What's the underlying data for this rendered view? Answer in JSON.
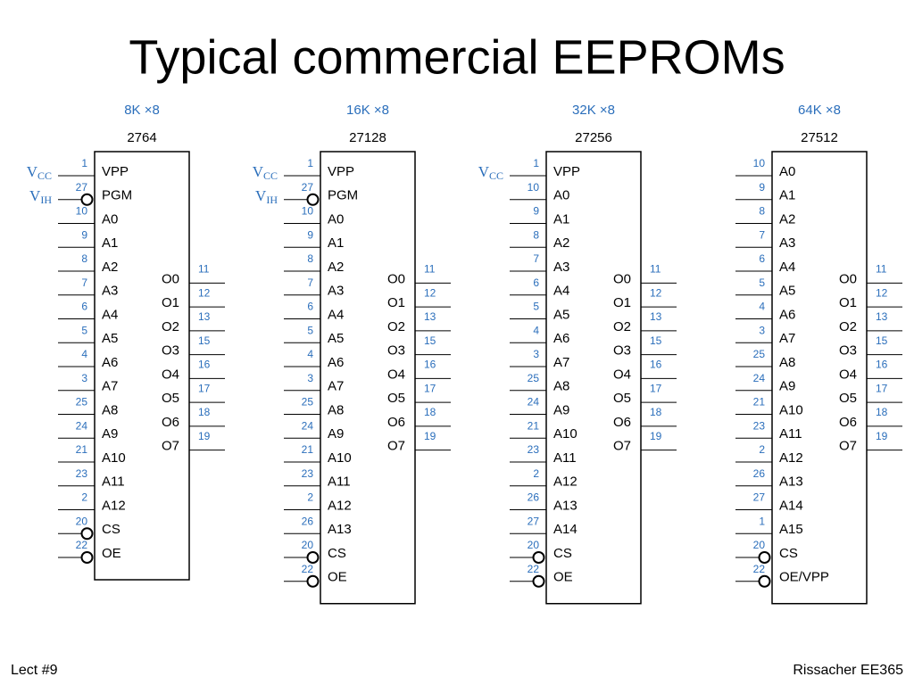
{
  "title": "Typical commercial EEPROMs",
  "footer": {
    "left": "Lect #9",
    "right": "Rissacher EE365"
  },
  "chips": [
    {
      "size": "8K ×8",
      "part": "2764",
      "left_pins": [
        {
          "num": 1,
          "name": "VPP",
          "signal": {
            "main": "V",
            "sub": "CC"
          }
        },
        {
          "num": 27,
          "name": "PGM",
          "active_low": true,
          "signal": {
            "main": "V",
            "sub": "IH"
          }
        },
        {
          "num": 10,
          "name": "A0"
        },
        {
          "num": 9,
          "name": "A1"
        },
        {
          "num": 8,
          "name": "A2"
        },
        {
          "num": 7,
          "name": "A3"
        },
        {
          "num": 6,
          "name": "A4"
        },
        {
          "num": 5,
          "name": "A5"
        },
        {
          "num": 4,
          "name": "A6"
        },
        {
          "num": 3,
          "name": "A7"
        },
        {
          "num": 25,
          "name": "A8"
        },
        {
          "num": 24,
          "name": "A9"
        },
        {
          "num": 21,
          "name": "A10"
        },
        {
          "num": 23,
          "name": "A11"
        },
        {
          "num": 2,
          "name": "A12"
        },
        {
          "num": 20,
          "name": "CS",
          "active_low": true
        },
        {
          "num": 22,
          "name": "OE",
          "active_low": true
        }
      ],
      "right_pins": [
        {
          "num": 11,
          "name": "O0"
        },
        {
          "num": 12,
          "name": "O1"
        },
        {
          "num": 13,
          "name": "O2"
        },
        {
          "num": 15,
          "name": "O3"
        },
        {
          "num": 16,
          "name": "O4"
        },
        {
          "num": 17,
          "name": "O5"
        },
        {
          "num": 18,
          "name": "O6"
        },
        {
          "num": 19,
          "name": "O7"
        }
      ]
    },
    {
      "size": "16K ×8",
      "part": "27128",
      "left_pins": [
        {
          "num": 1,
          "name": "VPP",
          "signal": {
            "main": "V",
            "sub": "CC"
          }
        },
        {
          "num": 27,
          "name": "PGM",
          "active_low": true,
          "signal": {
            "main": "V",
            "sub": "IH"
          }
        },
        {
          "num": 10,
          "name": "A0"
        },
        {
          "num": 9,
          "name": "A1"
        },
        {
          "num": 8,
          "name": "A2"
        },
        {
          "num": 7,
          "name": "A3"
        },
        {
          "num": 6,
          "name": "A4"
        },
        {
          "num": 5,
          "name": "A5"
        },
        {
          "num": 4,
          "name": "A6"
        },
        {
          "num": 3,
          "name": "A7"
        },
        {
          "num": 25,
          "name": "A8"
        },
        {
          "num": 24,
          "name": "A9"
        },
        {
          "num": 21,
          "name": "A10"
        },
        {
          "num": 23,
          "name": "A11"
        },
        {
          "num": 2,
          "name": "A12"
        },
        {
          "num": 26,
          "name": "A13"
        },
        {
          "num": 20,
          "name": "CS",
          "active_low": true
        },
        {
          "num": 22,
          "name": "OE",
          "active_low": true
        }
      ],
      "right_pins": [
        {
          "num": 11,
          "name": "O0"
        },
        {
          "num": 12,
          "name": "O1"
        },
        {
          "num": 13,
          "name": "O2"
        },
        {
          "num": 15,
          "name": "O3"
        },
        {
          "num": 16,
          "name": "O4"
        },
        {
          "num": 17,
          "name": "O5"
        },
        {
          "num": 18,
          "name": "O6"
        },
        {
          "num": 19,
          "name": "O7"
        }
      ]
    },
    {
      "size": "32K ×8",
      "part": "27256",
      "left_pins": [
        {
          "num": 1,
          "name": "VPP",
          "signal": {
            "main": "V",
            "sub": "CC"
          }
        },
        {
          "num": 10,
          "name": "A0"
        },
        {
          "num": 9,
          "name": "A1"
        },
        {
          "num": 8,
          "name": "A2"
        },
        {
          "num": 7,
          "name": "A3"
        },
        {
          "num": 6,
          "name": "A4"
        },
        {
          "num": 5,
          "name": "A5"
        },
        {
          "num": 4,
          "name": "A6"
        },
        {
          "num": 3,
          "name": "A7"
        },
        {
          "num": 25,
          "name": "A8"
        },
        {
          "num": 24,
          "name": "A9"
        },
        {
          "num": 21,
          "name": "A10"
        },
        {
          "num": 23,
          "name": "A11"
        },
        {
          "num": 2,
          "name": "A12"
        },
        {
          "num": 26,
          "name": "A13"
        },
        {
          "num": 27,
          "name": "A14"
        },
        {
          "num": 20,
          "name": "CS",
          "active_low": true
        },
        {
          "num": 22,
          "name": "OE",
          "active_low": true
        }
      ],
      "right_pins": [
        {
          "num": 11,
          "name": "O0"
        },
        {
          "num": 12,
          "name": "O1"
        },
        {
          "num": 13,
          "name": "O2"
        },
        {
          "num": 15,
          "name": "O3"
        },
        {
          "num": 16,
          "name": "O4"
        },
        {
          "num": 17,
          "name": "O5"
        },
        {
          "num": 18,
          "name": "O6"
        },
        {
          "num": 19,
          "name": "O7"
        }
      ]
    },
    {
      "size": "64K ×8",
      "part": "27512",
      "left_pins": [
        {
          "num": 10,
          "name": "A0"
        },
        {
          "num": 9,
          "name": "A1"
        },
        {
          "num": 8,
          "name": "A2"
        },
        {
          "num": 7,
          "name": "A3"
        },
        {
          "num": 6,
          "name": "A4"
        },
        {
          "num": 5,
          "name": "A5"
        },
        {
          "num": 4,
          "name": "A6"
        },
        {
          "num": 3,
          "name": "A7"
        },
        {
          "num": 25,
          "name": "A8"
        },
        {
          "num": 24,
          "name": "A9"
        },
        {
          "num": 21,
          "name": "A10"
        },
        {
          "num": 23,
          "name": "A11"
        },
        {
          "num": 2,
          "name": "A12"
        },
        {
          "num": 26,
          "name": "A13"
        },
        {
          "num": 27,
          "name": "A14"
        },
        {
          "num": 1,
          "name": "A15"
        },
        {
          "num": 20,
          "name": "CS",
          "active_low": true
        },
        {
          "num": 22,
          "name": "OE/VPP",
          "active_low": true
        }
      ],
      "right_pins": [
        {
          "num": 11,
          "name": "O0"
        },
        {
          "num": 12,
          "name": "O1"
        },
        {
          "num": 13,
          "name": "O2"
        },
        {
          "num": 15,
          "name": "O3"
        },
        {
          "num": 16,
          "name": "O4"
        },
        {
          "num": 17,
          "name": "O5"
        },
        {
          "num": 18,
          "name": "O6"
        },
        {
          "num": 19,
          "name": "O7"
        }
      ]
    }
  ]
}
